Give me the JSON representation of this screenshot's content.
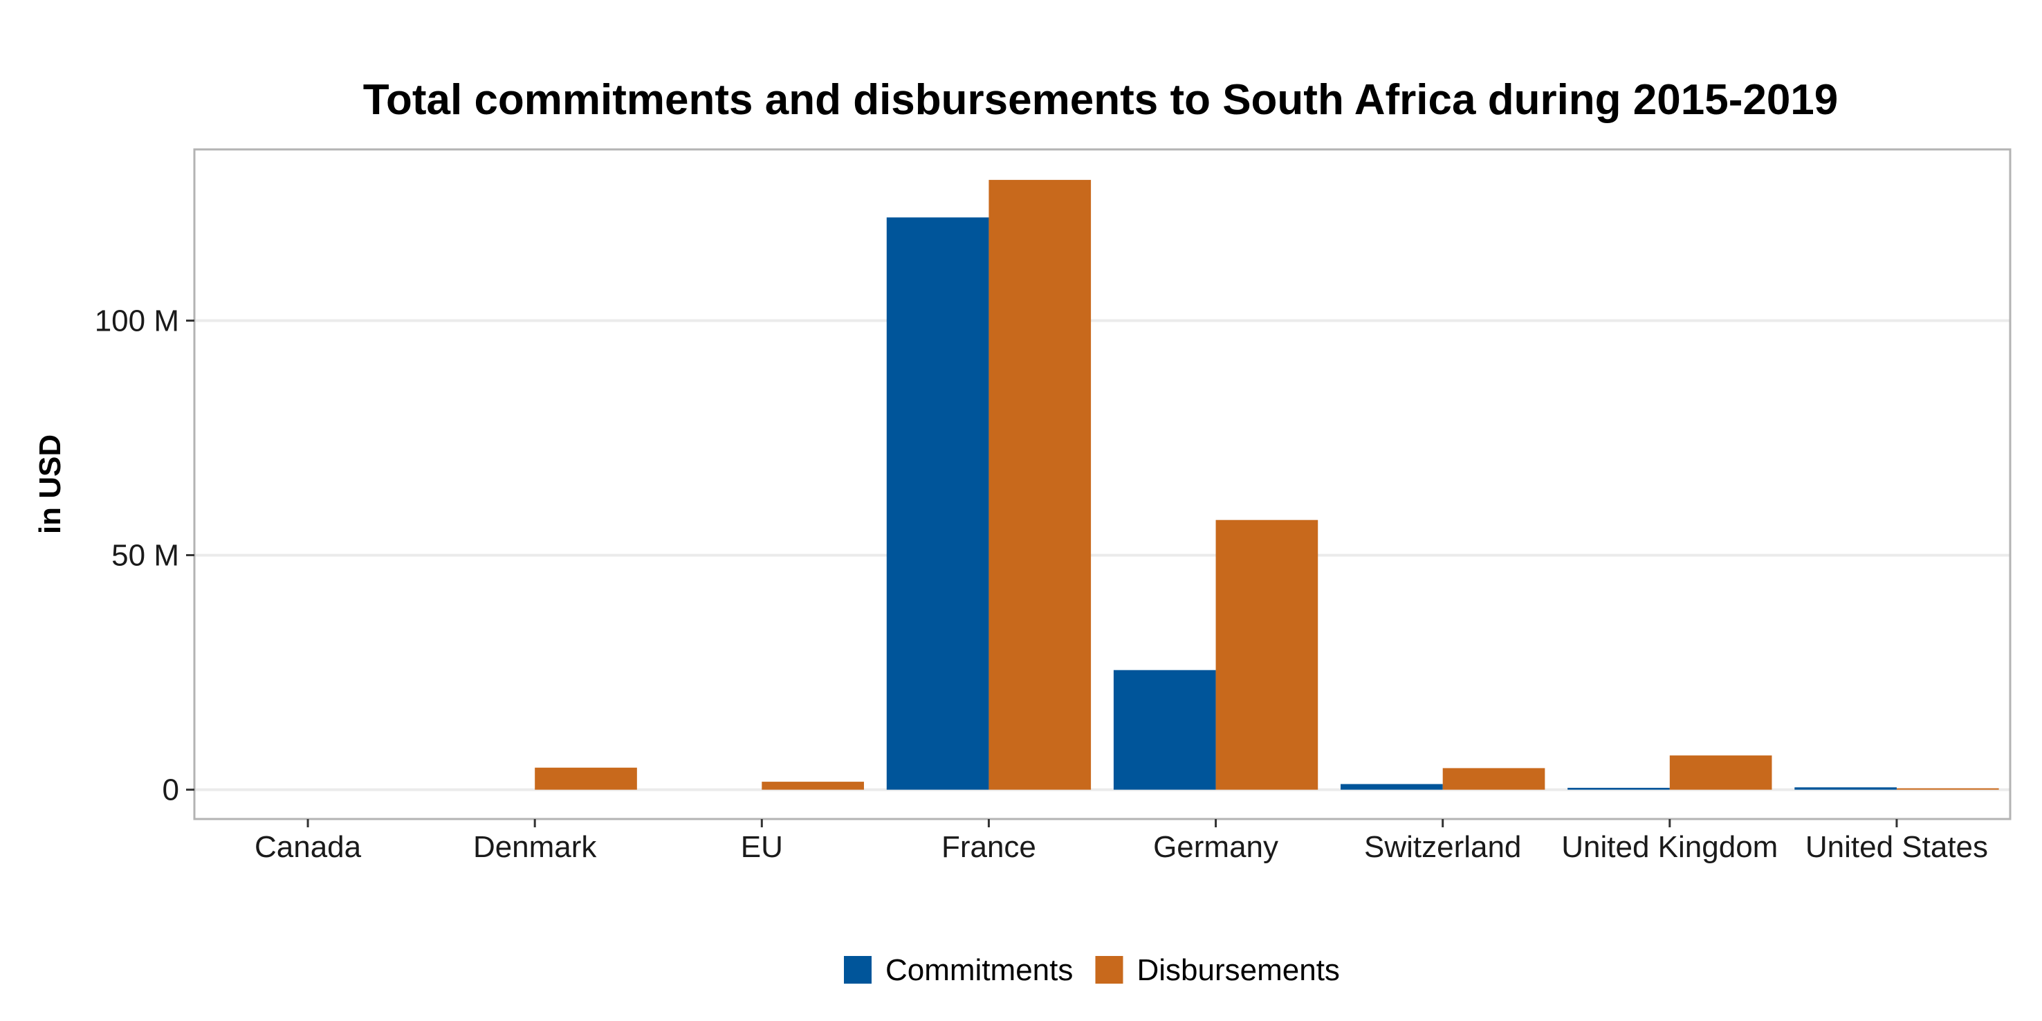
{
  "chart_data": {
    "type": "bar",
    "title": "Total commitments and disbursements to South Africa during 2015-2019",
    "xlabel": "",
    "ylabel": "in USD",
    "categories": [
      "Canada",
      "Denmark",
      "EU",
      "France",
      "Germany",
      "Switzerland",
      "United Kingdom",
      "United States"
    ],
    "series": [
      {
        "name": "Commitments",
        "color": "#00559A",
        "values": [
          0,
          0,
          0,
          122000000,
          25500000,
          1200000,
          400000,
          500000
        ]
      },
      {
        "name": "Disbursements",
        "color": "#C8691C",
        "values": [
          0,
          4700000,
          1700000,
          130000000,
          57500000,
          4600000,
          7300000,
          300000
        ]
      }
    ],
    "ylim": [
      -6250000,
      136500000
    ],
    "yticks": [
      0,
      50000000,
      100000000
    ],
    "ytick_labels": [
      "0",
      "50 M",
      "100 M"
    ],
    "grid": true,
    "legend_position": "bottom"
  }
}
